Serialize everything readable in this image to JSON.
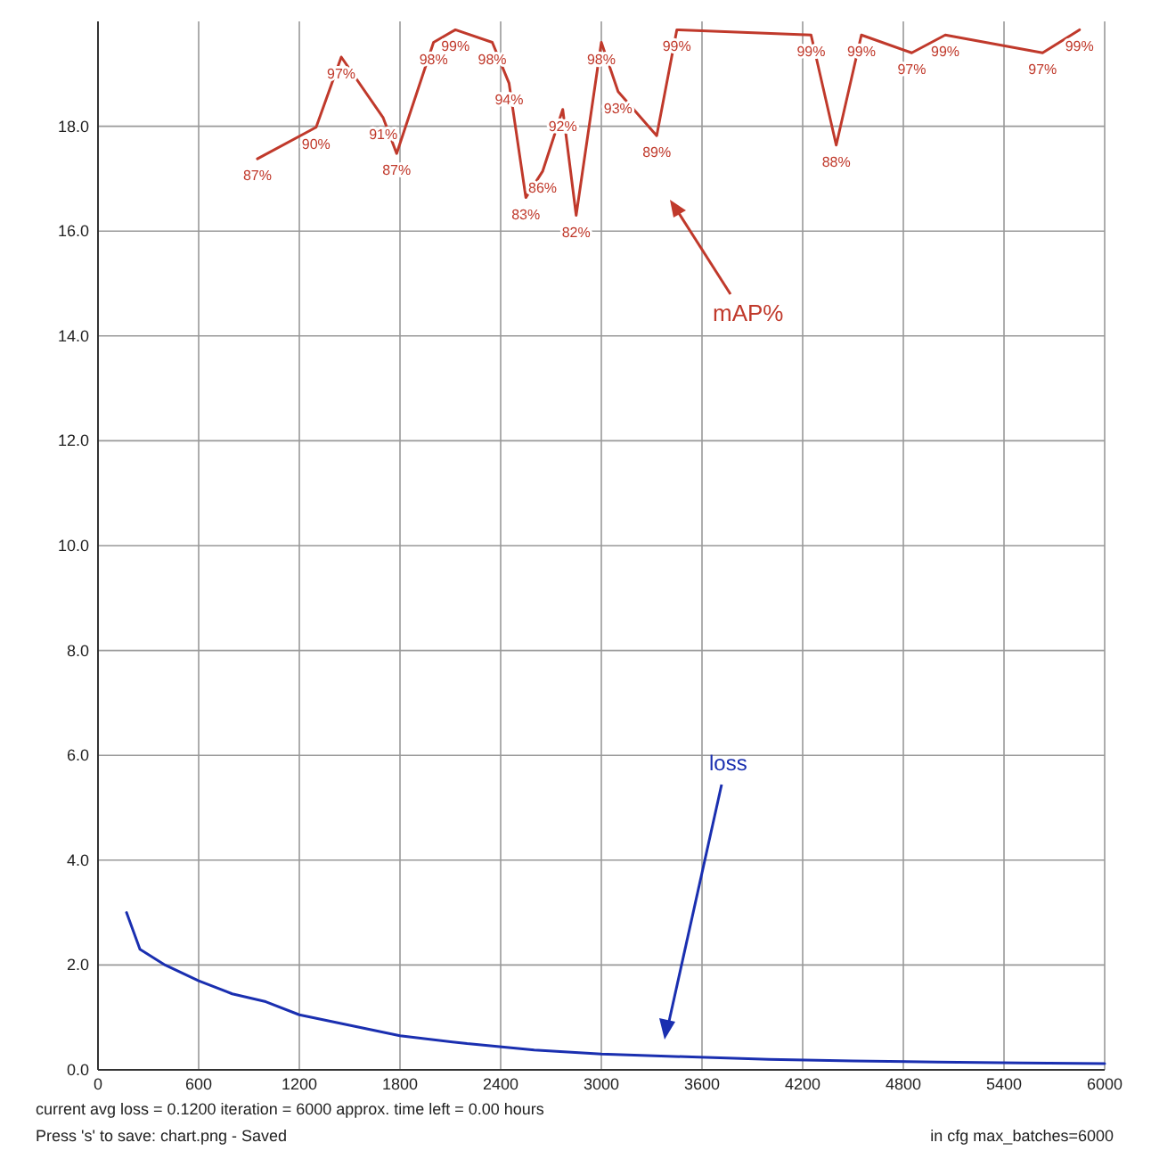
{
  "chart_data": {
    "type": "line",
    "xlim": [
      0,
      6000
    ],
    "xticks": [
      0,
      600,
      1200,
      1800,
      2400,
      3000,
      3600,
      4200,
      4800,
      5400,
      6000
    ],
    "ylim": [
      0,
      20
    ],
    "yticks": [
      {
        "value": 0,
        "label": "0.0"
      },
      {
        "value": 2,
        "label": "2.0"
      },
      {
        "value": 4,
        "label": "4.0"
      },
      {
        "value": 6,
        "label": "6.0"
      },
      {
        "value": 8,
        "label": "8.0"
      },
      {
        "value": 10,
        "label": "10.0"
      },
      {
        "value": 12,
        "label": "12.0"
      },
      {
        "value": 14,
        "label": "14.0"
      },
      {
        "value": 16,
        "label": "16.0"
      },
      {
        "value": 18,
        "label": "18.0"
      }
    ],
    "y2lim": [
      0,
      100
    ],
    "grid": true,
    "series": [
      {
        "name": "loss",
        "color": "#1a2fb0",
        "x": [
          170,
          250,
          400,
          600,
          800,
          1000,
          1200,
          1500,
          1800,
          2200,
          2600,
          3000,
          3500,
          4000,
          4500,
          5000,
          5500,
          6000
        ],
        "values": [
          3.0,
          2.3,
          2.0,
          1.7,
          1.45,
          1.3,
          1.05,
          0.85,
          0.65,
          0.5,
          0.38,
          0.3,
          0.25,
          0.2,
          0.17,
          0.15,
          0.13,
          0.12
        ]
      },
      {
        "name": "mAP%",
        "color": "#c0392b",
        "axis": "y2",
        "x": [
          950,
          1300,
          1450,
          1700,
          1780,
          2000,
          2130,
          2350,
          2450,
          2550,
          2650,
          2770,
          2850,
          3000,
          3100,
          3330,
          3450,
          4250,
          4400,
          4550,
          4850,
          5050,
          5630,
          5850
        ],
        "values": [
          86.9,
          89.9,
          96.6,
          90.8,
          87.4,
          98.0,
          99.2,
          98.0,
          94.1,
          83.2,
          85.7,
          91.6,
          81.5,
          98.0,
          93.3,
          89.1,
          99.2,
          98.7,
          88.2,
          98.7,
          97.0,
          98.7,
          97.0,
          99.2
        ],
        "value_labels": [
          "87%",
          "90%",
          "97%",
          "91%",
          "87%",
          "98%",
          "99%",
          "98%",
          "94%",
          "83%",
          "86%",
          "92%",
          "82%",
          "98%",
          "93%",
          "89%",
          "99%",
          "99%",
          "88%",
          "99%",
          "97%",
          "99%",
          "97%",
          "99%"
        ]
      }
    ],
    "annotations": [
      "current avg loss = 0.1200    iteration = 6000    approx. time left = 0.00 hours",
      "Press 's' to save: chart.png - Saved",
      "in cfg max_batches=6000"
    ]
  }
}
